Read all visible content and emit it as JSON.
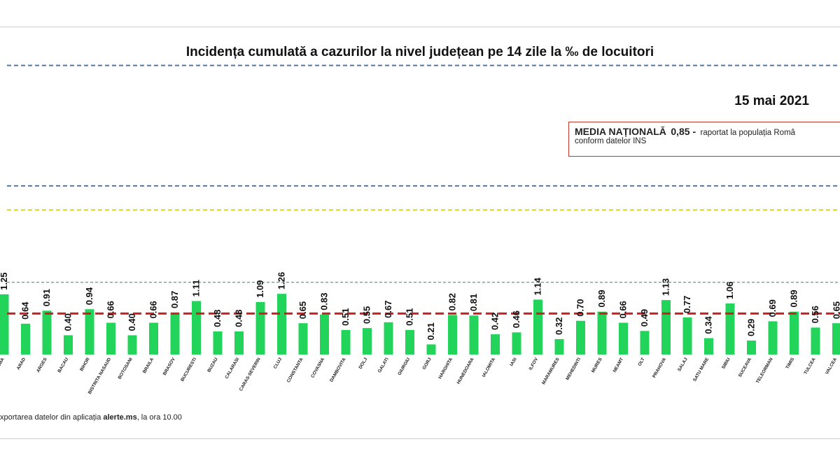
{
  "header": {
    "title": "Incidența cumulată a cazurilor la nivel județean pe 14 zile la ‰ de locuitori",
    "date": "15 mai 2021"
  },
  "media_box": {
    "label": "MEDIA NAȚIONALĂ",
    "value": "0,85 -",
    "text_line1": "raportat la populația Româ",
    "text_line2": "conform datelor INS"
  },
  "footer": {
    "prefix": "xportarea datelor din aplicația ",
    "app": "alerte.ms",
    "suffix": ", la ora 10.00"
  },
  "colors": {
    "bar": "#22d45a",
    "national_line": "#cc1f1f",
    "threshold_blue": "#4a6fa5",
    "threshold_yellow": "#d8cc20",
    "threshold_teal": "#4aa88a"
  },
  "chart_data": {
    "type": "bar",
    "title": "Incidența cumulată a cazurilor la nivel județean pe 14 zile la ‰ de locuitori",
    "categories": [
      "ALBA",
      "ARAD",
      "ARGES",
      "BACAU",
      "BIHOR",
      "BISTRITA NASAUD",
      "BOTOSANI",
      "BRAILA",
      "BRASOV",
      "BUCURESTI",
      "BUZAU",
      "CALARASI",
      "CARAS-SEVERIN",
      "CLUJ",
      "CONSTANTA",
      "COVASNA",
      "DAMBOVITA",
      "DOLJ",
      "GALATI",
      "GIURGIU",
      "GORJ",
      "HARGHITA",
      "HUNEDOARA",
      "IALOMITA",
      "IASI",
      "ILFOV",
      "MARAMURES",
      "MEHEDINTI",
      "MURES",
      "NEAMT",
      "OLT",
      "PRAHOVA",
      "SALAJ",
      "SATU MARE",
      "SIBIU",
      "SUCEAVA",
      "TELEORMAN",
      "TIMIS",
      "TULCEA",
      "VALCEA"
    ],
    "values": [
      1.25,
      0.64,
      0.91,
      0.4,
      0.94,
      0.66,
      0.4,
      0.66,
      0.87,
      1.11,
      0.48,
      0.48,
      1.09,
      1.26,
      0.65,
      0.83,
      0.51,
      0.55,
      0.67,
      0.51,
      0.21,
      0.82,
      0.81,
      0.42,
      0.46,
      1.14,
      0.32,
      0.7,
      0.89,
      0.66,
      0.49,
      1.13,
      0.77,
      0.34,
      1.06,
      0.29,
      0.69,
      0.89,
      0.56,
      0.65
    ],
    "national_average": 0.85,
    "thresholds": [
      {
        "value": 1.5,
        "style": "dashed",
        "color": "#4aa88a"
      },
      {
        "value": 3.0,
        "style": "dashed",
        "color": "#d8cc20"
      },
      {
        "value": 3.5,
        "style": "dashed",
        "color": "#4a6fa5"
      },
      {
        "value": 6.0,
        "style": "dashed",
        "color": "#4a6fa5"
      }
    ],
    "ylim": [
      0,
      6.4
    ],
    "grid": false,
    "legend": "none"
  }
}
